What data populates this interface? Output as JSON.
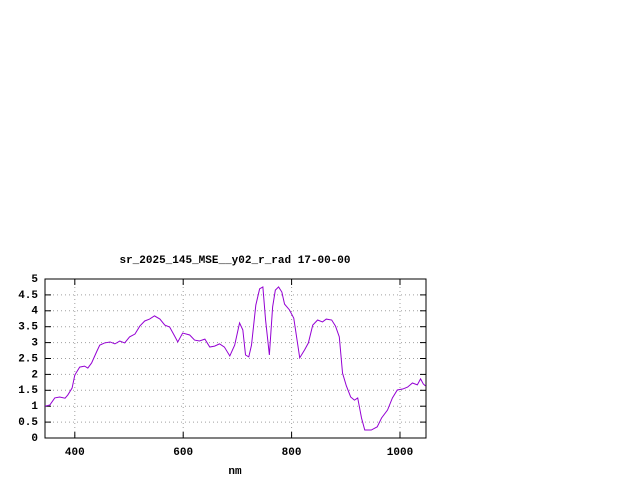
{
  "chart_data": {
    "type": "line",
    "title": "sr_2025_145_MSE__y02_r_rad 17-00-00",
    "x_label": "nm",
    "xlim": [
      345,
      1048
    ],
    "ylim": [
      0,
      5
    ],
    "xticks": [
      400,
      600,
      800,
      1000
    ],
    "yticks": [
      0,
      0.5,
      1,
      1.5,
      2,
      2.5,
      3,
      3.5,
      4,
      4.5,
      5
    ],
    "grid": true,
    "series": [
      {
        "color": "#9400d3",
        "x": [
          345,
          354,
          363,
          372,
          382,
          387,
          395,
          400,
          409,
          418,
          424,
          431,
          441,
          446,
          455,
          465,
          474,
          483,
          492,
          501,
          511,
          520,
          529,
          538,
          547,
          557,
          566,
          575,
          584,
          590,
          599,
          612,
          621,
          630,
          640,
          649,
          658,
          667,
          676,
          686,
          695,
          704,
          710,
          715,
          721,
          726,
          734,
          741,
          747,
          752,
          759,
          765,
          770,
          776,
          782,
          787,
          796,
          804,
          815,
          824,
          831,
          839,
          848,
          857,
          864,
          874,
          881,
          888,
          894,
          901,
          909,
          916,
          922,
          929,
          935,
          947,
          958,
          966,
          977,
          986,
          995,
          1005,
          1014,
          1023,
          1032,
          1038,
          1043,
          1047
        ],
        "values": [
          1.0,
          1.04,
          1.26,
          1.29,
          1.25,
          1.35,
          1.57,
          1.98,
          2.23,
          2.26,
          2.2,
          2.36,
          2.74,
          2.92,
          2.99,
          3.02,
          2.96,
          3.05,
          2.99,
          3.18,
          3.27,
          3.52,
          3.68,
          3.74,
          3.84,
          3.74,
          3.55,
          3.49,
          3.21,
          3.02,
          3.3,
          3.24,
          3.08,
          3.05,
          3.11,
          2.86,
          2.89,
          2.96,
          2.86,
          2.58,
          2.92,
          3.62,
          3.4,
          2.61,
          2.55,
          2.92,
          4.18,
          4.69,
          4.75,
          3.71,
          2.61,
          4.12,
          4.65,
          4.75,
          4.59,
          4.21,
          4.03,
          3.77,
          2.52,
          2.77,
          2.99,
          3.55,
          3.71,
          3.65,
          3.74,
          3.71,
          3.52,
          3.18,
          2.04,
          1.64,
          1.29,
          1.19,
          1.26,
          0.63,
          0.25,
          0.25,
          0.35,
          0.63,
          0.88,
          1.26,
          1.51,
          1.54,
          1.6,
          1.73,
          1.67,
          1.86,
          1.7,
          1.64
        ]
      }
    ]
  }
}
